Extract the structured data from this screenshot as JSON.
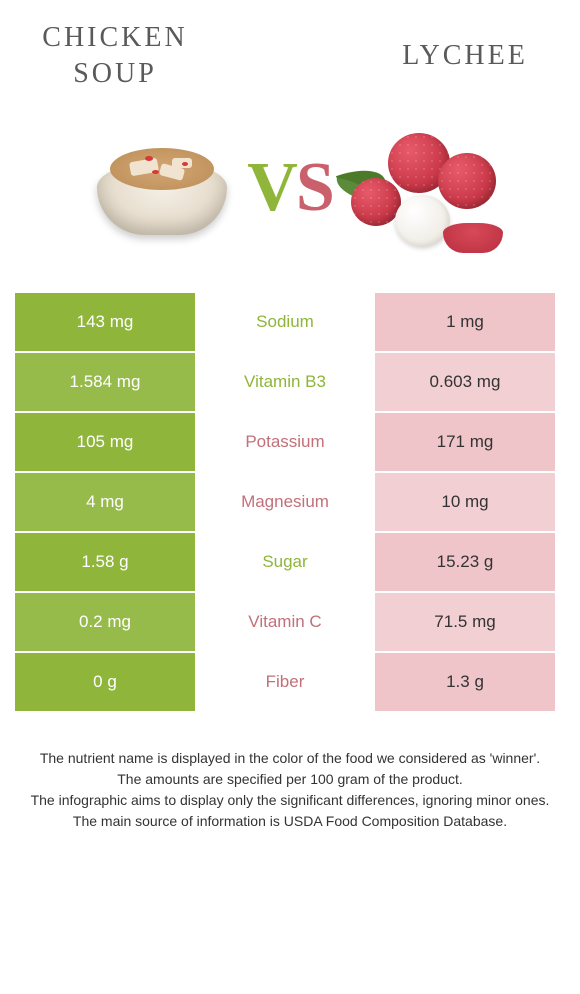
{
  "header": {
    "left_title": "CHICKEN SOUP",
    "right_title": "LYCHEE",
    "vs": "VS"
  },
  "colors": {
    "green": "#8fb53a",
    "pink": "#efc5c9",
    "pink_text": "#c27079"
  },
  "type": "table",
  "nutrients": [
    {
      "name": "Sodium",
      "left": "143 mg",
      "right": "1 mg",
      "winner": "left"
    },
    {
      "name": "Vitamin B3",
      "left": "1.584 mg",
      "right": "0.603 mg",
      "winner": "left"
    },
    {
      "name": "Potassium",
      "left": "105 mg",
      "right": "171 mg",
      "winner": "right"
    },
    {
      "name": "Magnesium",
      "left": "4 mg",
      "right": "10 mg",
      "winner": "right"
    },
    {
      "name": "Sugar",
      "left": "1.58 g",
      "right": "15.23 g",
      "winner": "left"
    },
    {
      "name": "Vitamin C",
      "left": "0.2 mg",
      "right": "71.5 mg",
      "winner": "right"
    },
    {
      "name": "Fiber",
      "left": "0 g",
      "right": "1.3 g",
      "winner": "right"
    }
  ],
  "footer": {
    "line1": "The nutrient name is displayed in the color of the food we considered as 'winner'.",
    "line2": "The amounts are specified per 100 gram of the product.",
    "line3": "The infographic aims to display only the significant differences, ignoring minor ones.",
    "line4": "The main source of information is USDA Food Composition Database."
  }
}
